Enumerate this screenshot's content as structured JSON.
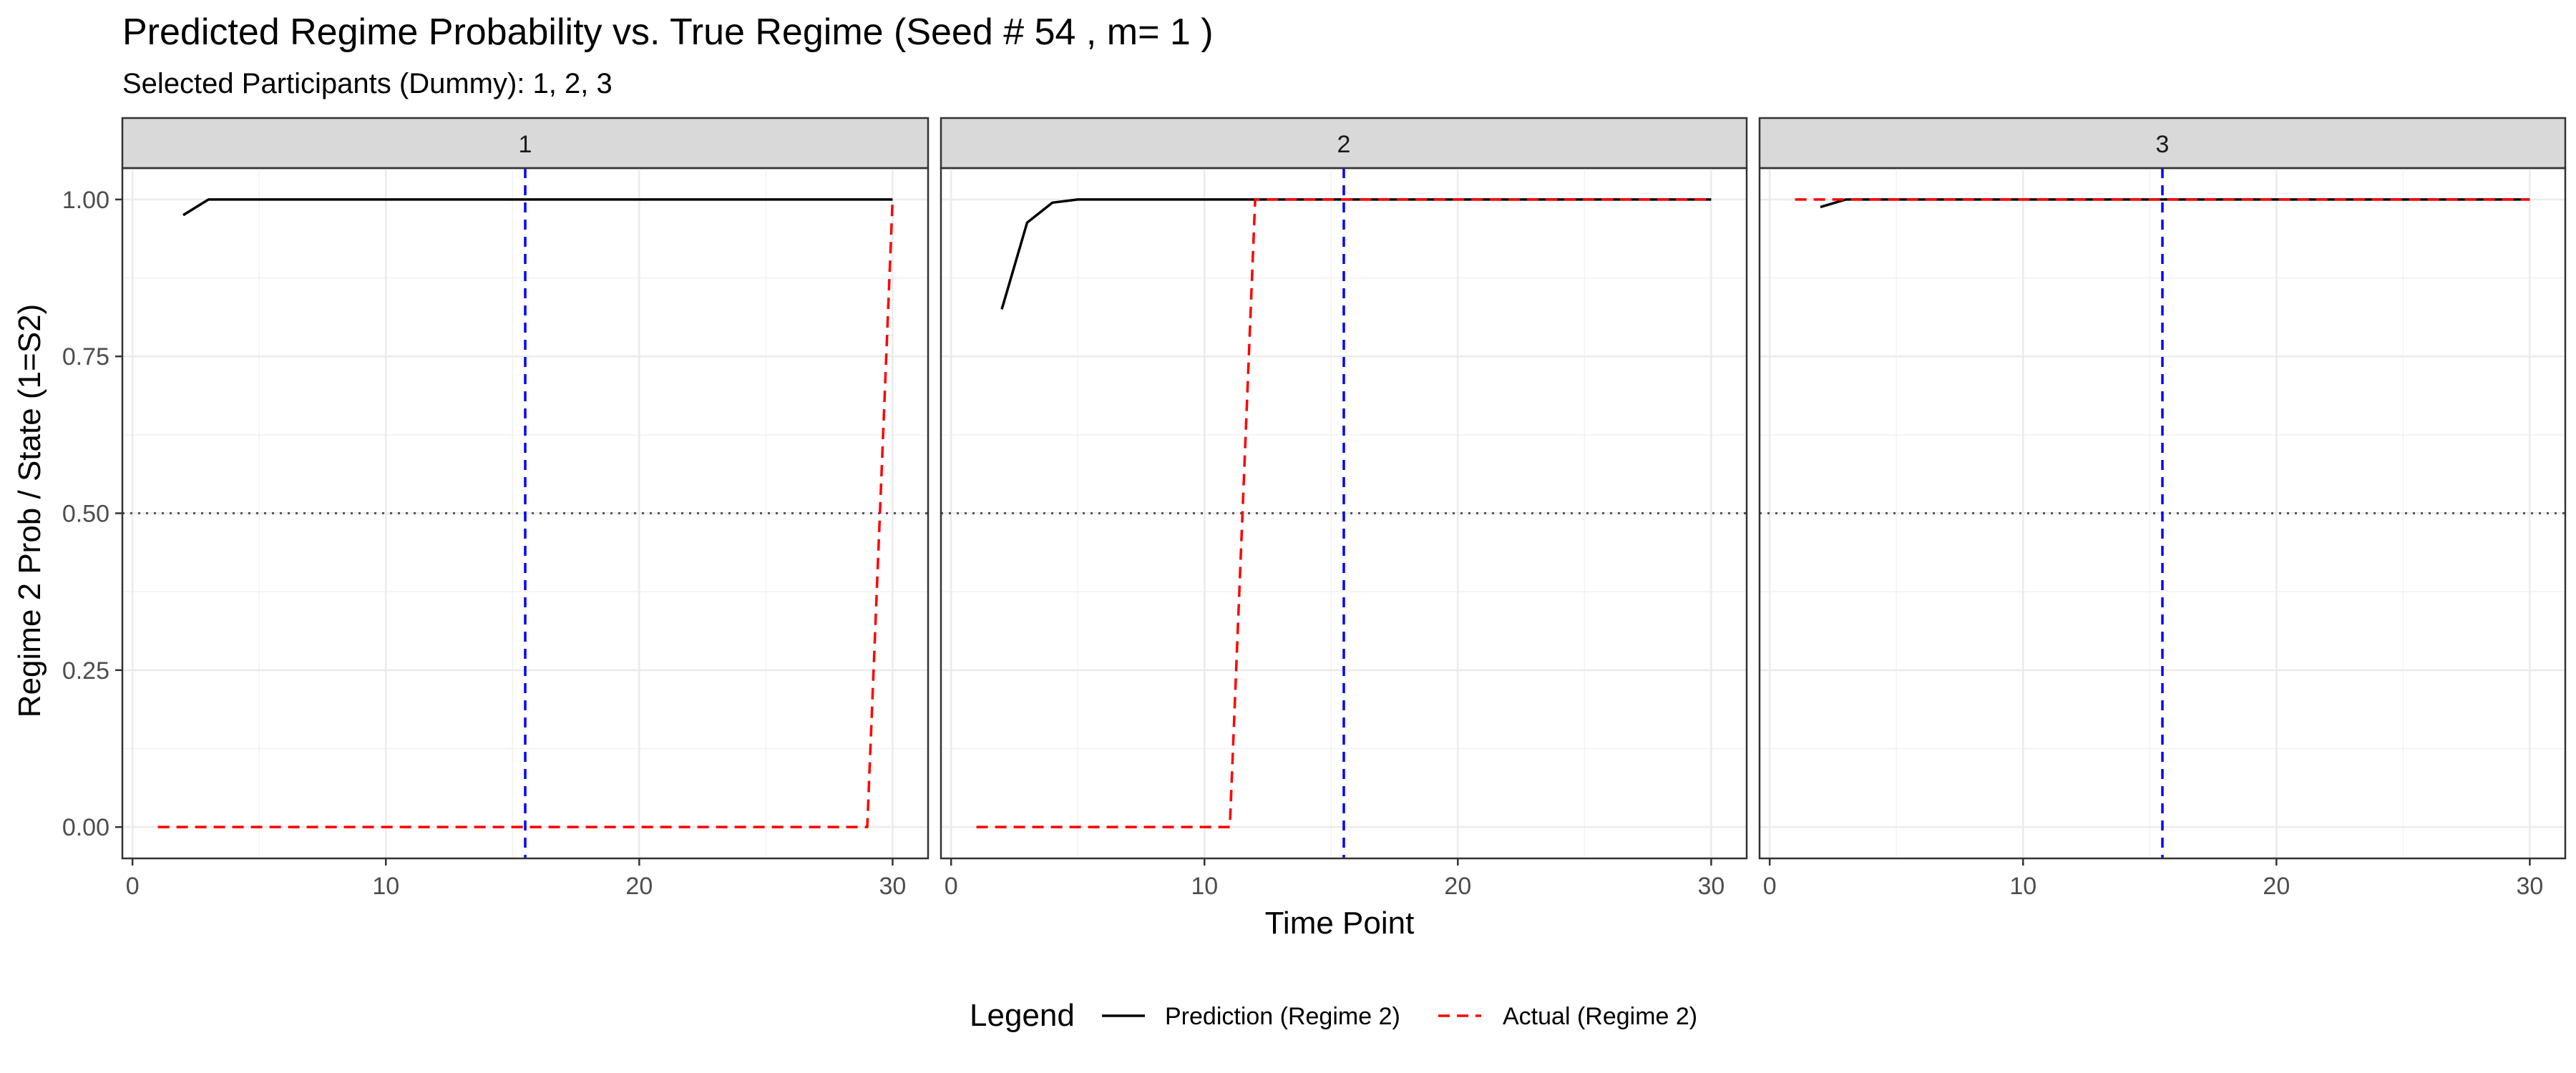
{
  "chart_data": {
    "type": "line",
    "title": "Predicted Regime Probability vs. True Regime (Seed # 54 , m= 1 )",
    "subtitle": "Selected Participants (Dummy): 1, 2, 3",
    "xlabel": "Time Point",
    "ylabel": "Regime 2 Prob / State (1=S2)",
    "xlim": [
      -0.4,
      31.4
    ],
    "ylim": [
      -0.05,
      1.05
    ],
    "x_ticks": [
      0,
      10,
      20,
      30
    ],
    "x_tick_labels": [
      "0",
      "10",
      "20",
      "30"
    ],
    "y_ticks": [
      0,
      0.25,
      0.5,
      0.75,
      1.0
    ],
    "y_tick_labels": [
      "0.00",
      "0.25",
      "0.50",
      "0.75",
      "1.00"
    ],
    "grid": true,
    "reference_lines": {
      "vertical_x": 15.5,
      "vertical_color": "#0000ff",
      "horizontal_y": 0.5,
      "horizontal_color": "#555555"
    },
    "legend": {
      "title": "Legend",
      "position": "bottom",
      "entries": [
        {
          "label": "Prediction (Regime 2)",
          "color": "#000000",
          "dash": "solid"
        },
        {
          "label": "Actual (Regime 2)",
          "color": "#ff0000",
          "dash": "dashed"
        }
      ]
    },
    "panels": [
      {
        "label": "1",
        "series": [
          {
            "name": "Prediction (Regime 2)",
            "color": "#000000",
            "dash": "solid",
            "x": [
              2,
              3,
              4,
              5,
              6,
              7,
              8,
              9,
              10,
              11,
              12,
              13,
              14,
              15,
              16,
              17,
              18,
              19,
              20,
              21,
              22,
              23,
              24,
              25,
              26,
              27,
              28,
              29,
              30
            ],
            "y": [
              0.975,
              1.0,
              1.0,
              1.0,
              1.0,
              1.0,
              1.0,
              1.0,
              1.0,
              1.0,
              1.0,
              1.0,
              1.0,
              1.0,
              1.0,
              1.0,
              1.0,
              1.0,
              1.0,
              1.0,
              1.0,
              1.0,
              1.0,
              1.0,
              1.0,
              1.0,
              1.0,
              1.0,
              1.0
            ]
          },
          {
            "name": "Actual (Regime 2)",
            "color": "#ff0000",
            "dash": "dashed",
            "x": [
              1,
              2,
              3,
              4,
              5,
              6,
              7,
              8,
              9,
              10,
              11,
              12,
              13,
              14,
              15,
              16,
              17,
              18,
              19,
              20,
              21,
              22,
              23,
              24,
              25,
              26,
              27,
              28,
              29,
              30
            ],
            "y": [
              0,
              0,
              0,
              0,
              0,
              0,
              0,
              0,
              0,
              0,
              0,
              0,
              0,
              0,
              0,
              0,
              0,
              0,
              0,
              0,
              0,
              0,
              0,
              0,
              0,
              0,
              0,
              0,
              0,
              1
            ]
          }
        ]
      },
      {
        "label": "2",
        "series": [
          {
            "name": "Prediction (Regime 2)",
            "color": "#000000",
            "dash": "solid",
            "x": [
              2,
              3,
              4,
              5,
              6,
              7,
              8,
              9,
              10,
              11,
              12,
              13,
              14,
              15,
              16,
              17,
              18,
              19,
              20,
              21,
              22,
              23,
              24,
              25,
              26,
              27,
              28,
              29,
              30
            ],
            "y": [
              0.825,
              0.963,
              0.995,
              1.0,
              1.0,
              1.0,
              1.0,
              1.0,
              1.0,
              1.0,
              1.0,
              1.0,
              1.0,
              1.0,
              1.0,
              1.0,
              1.0,
              1.0,
              1.0,
              1.0,
              1.0,
              1.0,
              1.0,
              1.0,
              1.0,
              1.0,
              1.0,
              1.0,
              1.0
            ]
          },
          {
            "name": "Actual (Regime 2)",
            "color": "#ff0000",
            "dash": "dashed",
            "x": [
              1,
              2,
              3,
              4,
              5,
              6,
              7,
              8,
              9,
              10,
              11,
              12,
              13,
              14,
              15,
              16,
              17,
              18,
              19,
              20,
              21,
              22,
              23,
              24,
              25,
              26,
              27,
              28,
              29,
              30
            ],
            "y": [
              0,
              0,
              0,
              0,
              0,
              0,
              0,
              0,
              0,
              0,
              0,
              1,
              1,
              1,
              1,
              1,
              1,
              1,
              1,
              1,
              1,
              1,
              1,
              1,
              1,
              1,
              1,
              1,
              1,
              1
            ]
          }
        ]
      },
      {
        "label": "3",
        "series": [
          {
            "name": "Prediction (Regime 2)",
            "color": "#000000",
            "dash": "solid",
            "x": [
              2,
              3,
              4,
              5,
              6,
              7,
              8,
              9,
              10,
              11,
              12,
              13,
              14,
              15,
              16,
              17,
              18,
              19,
              20,
              21,
              22,
              23,
              24,
              25,
              26,
              27,
              28,
              29,
              30
            ],
            "y": [
              0.988,
              1.0,
              1.0,
              1.0,
              1.0,
              1.0,
              1.0,
              1.0,
              1.0,
              1.0,
              1.0,
              1.0,
              1.0,
              1.0,
              1.0,
              1.0,
              1.0,
              1.0,
              1.0,
              1.0,
              1.0,
              1.0,
              1.0,
              1.0,
              1.0,
              1.0,
              1.0,
              1.0,
              1.0
            ]
          },
          {
            "name": "Actual (Regime 2)",
            "color": "#ff0000",
            "dash": "dashed",
            "x": [
              1,
              2,
              3,
              4,
              5,
              6,
              7,
              8,
              9,
              10,
              11,
              12,
              13,
              14,
              15,
              16,
              17,
              18,
              19,
              20,
              21,
              22,
              23,
              24,
              25,
              26,
              27,
              28,
              29,
              30
            ],
            "y": [
              1,
              1,
              1,
              1,
              1,
              1,
              1,
              1,
              1,
              1,
              1,
              1,
              1,
              1,
              1,
              1,
              1,
              1,
              1,
              1,
              1,
              1,
              1,
              1,
              1,
              1,
              1,
              1,
              1,
              1
            ]
          }
        ]
      }
    ]
  }
}
